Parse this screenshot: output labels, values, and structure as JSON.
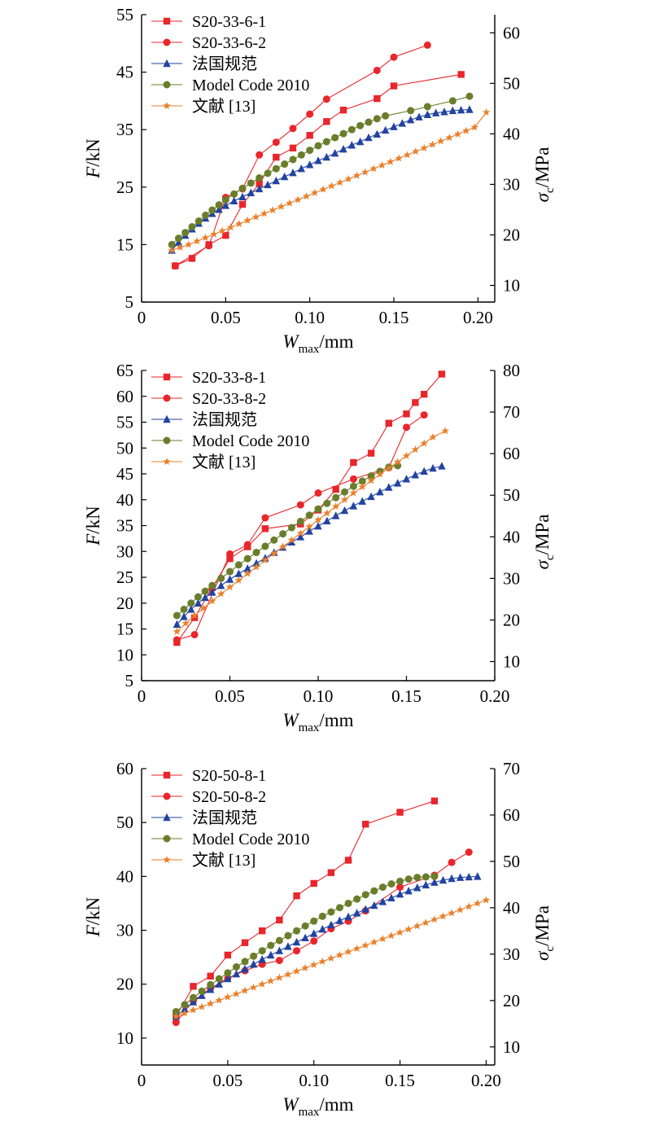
{
  "colors": {
    "red": "#e8262c",
    "blue": "#2243a1",
    "olive": "#6a7d2b",
    "orange": "#ea7f2a",
    "axis": "#000000"
  },
  "chart_data": [
    {
      "type": "line",
      "xlabel": {
        "main": "W",
        "sub": "max",
        "unit": "/mm"
      },
      "ylabel_left": {
        "main": "F",
        "unit": "/kN"
      },
      "ylabel_right": {
        "main": "σ",
        "sub": "c",
        "unit": "/MPa"
      },
      "xlim": [
        0,
        0.21
      ],
      "ylim_left": [
        5,
        55
      ],
      "ylim_right": [
        6.7,
        63.6
      ],
      "x_ticks": [
        0,
        0.05,
        0.1,
        0.15,
        0.2
      ],
      "x_tick_labels": [
        "0",
        "0.05",
        "0.10",
        "0.15",
        "0.20"
      ],
      "y_ticks_left": [
        5,
        15,
        25,
        35,
        45,
        55
      ],
      "y_ticks_right": [
        10,
        20,
        30,
        40,
        50,
        60
      ],
      "legend_position": "top-left",
      "series": [
        {
          "name": "S20-33-6-1",
          "marker": "square",
          "color": "#e8262c",
          "x": [
            0.02,
            0.03,
            0.04,
            0.05,
            0.06,
            0.07,
            0.08,
            0.09,
            0.1,
            0.11,
            0.12,
            0.14,
            0.15,
            0.19
          ],
          "y": [
            11.3,
            12.6,
            15.0,
            16.6,
            22.0,
            25.6,
            30.2,
            31.8,
            34.0,
            36.4,
            38.4,
            40.4,
            42.6,
            44.6
          ]
        },
        {
          "name": "S20-33-6-2",
          "marker": "circle",
          "color": "#e8262c",
          "x": [
            0.02,
            0.04,
            0.05,
            0.06,
            0.07,
            0.08,
            0.09,
            0.1,
            0.11,
            0.14,
            0.15,
            0.17
          ],
          "y": [
            11.3,
            14.8,
            23.2,
            24.7,
            30.6,
            32.8,
            35.2,
            37.7,
            40.3,
            45.3,
            47.6,
            49.7
          ]
        },
        {
          "name": "法国规范",
          "marker": "triangle",
          "color": "#2243a1",
          "x": [
            0.018,
            0.022,
            0.026,
            0.03,
            0.034,
            0.038,
            0.042,
            0.046,
            0.05,
            0.055,
            0.06,
            0.065,
            0.07,
            0.075,
            0.08,
            0.085,
            0.09,
            0.095,
            0.1,
            0.105,
            0.11,
            0.115,
            0.12,
            0.125,
            0.13,
            0.135,
            0.14,
            0.145,
            0.15,
            0.155,
            0.16,
            0.165,
            0.17,
            0.175,
            0.18,
            0.185,
            0.19,
            0.195
          ],
          "y": [
            14.0,
            15.4,
            16.6,
            17.7,
            18.7,
            19.6,
            20.4,
            21.1,
            21.8,
            22.6,
            23.3,
            24.0,
            24.7,
            25.4,
            26.1,
            26.8,
            27.5,
            28.2,
            28.9,
            29.6,
            30.2,
            30.9,
            31.6,
            32.3,
            32.9,
            33.6,
            34.2,
            34.9,
            35.5,
            36.1,
            36.7,
            37.2,
            37.6,
            37.9,
            38.1,
            38.3,
            38.4,
            38.5
          ]
        },
        {
          "name": "Model Code 2010",
          "marker": "circle",
          "color": "#6a7d2b",
          "x": [
            0.018,
            0.022,
            0.026,
            0.03,
            0.034,
            0.038,
            0.042,
            0.046,
            0.05,
            0.055,
            0.06,
            0.065,
            0.07,
            0.075,
            0.08,
            0.085,
            0.09,
            0.095,
            0.1,
            0.105,
            0.11,
            0.115,
            0.12,
            0.125,
            0.13,
            0.135,
            0.14,
            0.145,
            0.16,
            0.17,
            0.185,
            0.195
          ],
          "y": [
            15.0,
            16.1,
            17.1,
            18.1,
            19.1,
            20.1,
            21.0,
            21.9,
            22.8,
            23.8,
            24.8,
            25.7,
            26.6,
            27.4,
            28.2,
            29.0,
            29.8,
            30.6,
            31.4,
            32.2,
            32.9,
            33.6,
            34.3,
            35.0,
            35.7,
            36.3,
            36.9,
            37.4,
            38.3,
            39.0,
            40.0,
            40.8
          ]
        },
        {
          "name": "文献 [13]",
          "marker": "star",
          "color": "#ea7f2a",
          "x": [
            0.018,
            0.023,
            0.028,
            0.033,
            0.038,
            0.043,
            0.048,
            0.053,
            0.058,
            0.063,
            0.068,
            0.073,
            0.078,
            0.083,
            0.088,
            0.093,
            0.098,
            0.103,
            0.108,
            0.113,
            0.118,
            0.123,
            0.128,
            0.133,
            0.138,
            0.143,
            0.148,
            0.153,
            0.158,
            0.163,
            0.168,
            0.173,
            0.178,
            0.183,
            0.188,
            0.193,
            0.198,
            0.205
          ],
          "y": [
            14.0,
            14.5,
            15.0,
            15.6,
            16.2,
            16.8,
            17.4,
            18.0,
            18.6,
            19.2,
            19.8,
            20.4,
            21.0,
            21.6,
            22.2,
            22.8,
            23.4,
            24.0,
            24.6,
            25.2,
            25.8,
            26.4,
            27.0,
            27.6,
            28.2,
            28.8,
            29.4,
            30.0,
            30.6,
            31.2,
            31.8,
            32.4,
            33.0,
            33.6,
            34.2,
            34.8,
            35.4,
            38.0
          ]
        }
      ]
    },
    {
      "type": "line",
      "xlabel": {
        "main": "W",
        "sub": "max",
        "unit": "/mm"
      },
      "ylabel_left": {
        "main": "F",
        "unit": "/kN"
      },
      "ylabel_right": {
        "main": "σ",
        "sub": "c",
        "unit": "/MPa"
      },
      "xlim": [
        0,
        0.2
      ],
      "ylim_left": [
        5,
        65
      ],
      "ylim_right": [
        5.4,
        80
      ],
      "x_ticks": [
        0,
        0.05,
        0.1,
        0.15,
        0.2
      ],
      "x_tick_labels": [
        "0",
        "0.05",
        "0.10",
        "0.15",
        "0.20"
      ],
      "y_ticks_left": [
        5,
        10,
        15,
        20,
        25,
        30,
        35,
        40,
        45,
        50,
        55,
        60,
        65
      ],
      "y_ticks_right": [
        10,
        20,
        30,
        40,
        50,
        60,
        70,
        80
      ],
      "legend_position": "top-left",
      "series": [
        {
          "name": "S20-33-8-1",
          "marker": "square",
          "color": "#e8262c",
          "x": [
            0.02,
            0.03,
            0.04,
            0.05,
            0.06,
            0.07,
            0.09,
            0.1,
            0.11,
            0.12,
            0.13,
            0.14,
            0.15,
            0.155,
            0.16,
            0.17
          ],
          "y": [
            12.4,
            17.2,
            23.0,
            28.6,
            30.9,
            34.4,
            35.3,
            38.0,
            42.0,
            47.2,
            49.0,
            54.8,
            56.6,
            58.8,
            60.4,
            64.3
          ]
        },
        {
          "name": "S20-33-8-2",
          "marker": "circle",
          "color": "#e8262c",
          "x": [
            0.02,
            0.03,
            0.05,
            0.06,
            0.07,
            0.09,
            0.1,
            0.12,
            0.14,
            0.15,
            0.16
          ],
          "y": [
            12.9,
            13.9,
            29.5,
            31.3,
            36.5,
            39.0,
            41.3,
            44.0,
            46.2,
            54.0,
            56.4
          ]
        },
        {
          "name": "法国规范",
          "marker": "triangle",
          "color": "#2243a1",
          "x": [
            0.02,
            0.024,
            0.028,
            0.032,
            0.036,
            0.04,
            0.045,
            0.05,
            0.055,
            0.06,
            0.065,
            0.07,
            0.075,
            0.08,
            0.085,
            0.09,
            0.095,
            0.1,
            0.105,
            0.11,
            0.115,
            0.12,
            0.125,
            0.13,
            0.135,
            0.14,
            0.145,
            0.15,
            0.155,
            0.16,
            0.165,
            0.17
          ],
          "y": [
            15.9,
            17.4,
            18.8,
            20.0,
            21.1,
            22.1,
            23.4,
            24.6,
            25.7,
            26.7,
            27.7,
            28.7,
            29.8,
            30.8,
            31.8,
            32.8,
            33.9,
            34.9,
            35.9,
            36.9,
            37.9,
            38.8,
            39.7,
            40.6,
            41.5,
            42.4,
            43.2,
            44.0,
            44.8,
            45.5,
            46.1,
            46.5
          ]
        },
        {
          "name": "Model Code 2010",
          "marker": "circle",
          "color": "#6a7d2b",
          "x": [
            0.02,
            0.024,
            0.028,
            0.032,
            0.036,
            0.04,
            0.045,
            0.05,
            0.055,
            0.06,
            0.065,
            0.07,
            0.075,
            0.08,
            0.085,
            0.09,
            0.095,
            0.1,
            0.105,
            0.11,
            0.115,
            0.12,
            0.125,
            0.13,
            0.135,
            0.14,
            0.145
          ],
          "y": [
            17.6,
            18.8,
            20.0,
            21.2,
            22.3,
            23.4,
            24.8,
            26.1,
            27.4,
            28.6,
            29.8,
            31.0,
            32.2,
            33.4,
            34.6,
            35.8,
            37.0,
            38.2,
            39.3,
            40.4,
            41.5,
            42.6,
            43.6,
            44.6,
            45.5,
            46.3,
            46.6
          ]
        },
        {
          "name": "文献 [13]",
          "marker": "star",
          "color": "#ea7f2a",
          "x": [
            0.02,
            0.025,
            0.03,
            0.035,
            0.04,
            0.045,
            0.05,
            0.055,
            0.06,
            0.065,
            0.07,
            0.075,
            0.08,
            0.085,
            0.09,
            0.095,
            0.1,
            0.105,
            0.11,
            0.115,
            0.12,
            0.125,
            0.13,
            0.135,
            0.14,
            0.145,
            0.15,
            0.155,
            0.16,
            0.165,
            0.172
          ],
          "y": [
            14.5,
            16.1,
            17.6,
            19.0,
            20.4,
            21.8,
            23.1,
            24.4,
            25.7,
            27.0,
            28.3,
            29.6,
            30.9,
            32.2,
            33.5,
            34.8,
            36.1,
            37.4,
            38.7,
            40.0,
            41.3,
            42.5,
            43.7,
            44.9,
            46.1,
            47.3,
            48.5,
            49.7,
            50.9,
            52.1,
            53.3
          ]
        }
      ]
    },
    {
      "type": "line",
      "xlabel": {
        "main": "W",
        "sub": "max",
        "unit": "/mm"
      },
      "ylabel_left": {
        "main": "F",
        "unit": "/kN"
      },
      "ylabel_right": {
        "main": "σ",
        "sub": "c",
        "unit": "/MPa"
      },
      "xlim": [
        0,
        0.205
      ],
      "ylim_left": [
        5,
        60
      ],
      "ylim_right": [
        6.1,
        70
      ],
      "x_ticks": [
        0,
        0.05,
        0.1,
        0.15,
        0.2
      ],
      "x_tick_labels": [
        "0",
        "0.05",
        "0.10",
        "0.15",
        "0.20"
      ],
      "y_ticks_left": [
        10,
        20,
        30,
        40,
        50,
        60
      ],
      "y_ticks_right": [
        10,
        20,
        30,
        40,
        50,
        60,
        70
      ],
      "legend_position": "top-left",
      "series": [
        {
          "name": "S20-50-8-1",
          "marker": "square",
          "color": "#e8262c",
          "x": [
            0.02,
            0.03,
            0.04,
            0.05,
            0.06,
            0.07,
            0.08,
            0.09,
            0.1,
            0.11,
            0.12,
            0.13,
            0.15,
            0.17
          ],
          "y": [
            14.0,
            19.6,
            21.5,
            25.4,
            27.7,
            29.9,
            31.9,
            36.4,
            38.7,
            40.7,
            43.0,
            49.7,
            51.9,
            54.0
          ]
        },
        {
          "name": "S20-50-8-2",
          "marker": "circle",
          "color": "#e8262c",
          "x": [
            0.02,
            0.03,
            0.04,
            0.05,
            0.06,
            0.07,
            0.08,
            0.09,
            0.1,
            0.11,
            0.12,
            0.13,
            0.15,
            0.17,
            0.18,
            0.19
          ],
          "y": [
            12.9,
            16.9,
            19.2,
            21.1,
            22.5,
            23.7,
            24.4,
            26.2,
            28.0,
            30.3,
            31.7,
            33.6,
            38.0,
            40.2,
            42.6,
            44.5
          ]
        },
        {
          "name": "法国规范",
          "marker": "triangle",
          "color": "#2243a1",
          "x": [
            0.02,
            0.025,
            0.03,
            0.035,
            0.04,
            0.045,
            0.05,
            0.055,
            0.06,
            0.065,
            0.07,
            0.075,
            0.08,
            0.085,
            0.09,
            0.095,
            0.1,
            0.105,
            0.11,
            0.115,
            0.12,
            0.125,
            0.13,
            0.135,
            0.14,
            0.145,
            0.15,
            0.155,
            0.16,
            0.165,
            0.17,
            0.175,
            0.18,
            0.185,
            0.19,
            0.195
          ],
          "y": [
            14.0,
            15.4,
            16.7,
            17.9,
            19.0,
            20.0,
            21.0,
            21.9,
            22.8,
            23.7,
            24.6,
            25.4,
            26.2,
            27.0,
            27.8,
            28.6,
            29.4,
            30.2,
            31.0,
            31.8,
            32.5,
            33.2,
            33.9,
            34.6,
            35.3,
            36.0,
            36.7,
            37.3,
            37.9,
            38.4,
            38.9,
            39.3,
            39.6,
            39.8,
            39.9,
            40.0
          ]
        },
        {
          "name": "Model Code 2010",
          "marker": "circle",
          "color": "#6a7d2b",
          "x": [
            0.02,
            0.025,
            0.03,
            0.035,
            0.04,
            0.045,
            0.05,
            0.055,
            0.06,
            0.065,
            0.07,
            0.075,
            0.08,
            0.085,
            0.09,
            0.095,
            0.1,
            0.105,
            0.11,
            0.115,
            0.12,
            0.125,
            0.13,
            0.135,
            0.14,
            0.145,
            0.15,
            0.155,
            0.16,
            0.165,
            0.17
          ],
          "y": [
            14.9,
            16.2,
            17.5,
            18.7,
            19.9,
            21.0,
            22.1,
            23.2,
            24.2,
            25.2,
            26.2,
            27.2,
            28.1,
            29.0,
            29.9,
            30.8,
            31.7,
            32.6,
            33.4,
            34.2,
            35.0,
            35.8,
            36.6,
            37.3,
            38.0,
            38.6,
            39.1,
            39.5,
            39.8,
            39.9,
            40.0
          ]
        },
        {
          "name": "文献 [13]",
          "marker": "star",
          "color": "#ea7f2a",
          "x": [
            0.02,
            0.025,
            0.03,
            0.035,
            0.04,
            0.045,
            0.05,
            0.055,
            0.06,
            0.065,
            0.07,
            0.075,
            0.08,
            0.085,
            0.09,
            0.095,
            0.1,
            0.105,
            0.11,
            0.115,
            0.12,
            0.125,
            0.13,
            0.135,
            0.14,
            0.145,
            0.15,
            0.155,
            0.16,
            0.165,
            0.17,
            0.175,
            0.18,
            0.185,
            0.19,
            0.195,
            0.2
          ],
          "y": [
            14.0,
            14.6,
            15.2,
            15.8,
            16.4,
            17.0,
            17.6,
            18.2,
            18.8,
            19.4,
            20.0,
            20.6,
            21.2,
            21.8,
            22.4,
            23.0,
            23.6,
            24.2,
            24.8,
            25.4,
            26.0,
            26.6,
            27.2,
            27.8,
            28.4,
            29.0,
            29.6,
            30.2,
            30.8,
            31.4,
            32.0,
            32.6,
            33.2,
            33.8,
            34.4,
            35.0,
            35.6
          ]
        }
      ]
    }
  ]
}
